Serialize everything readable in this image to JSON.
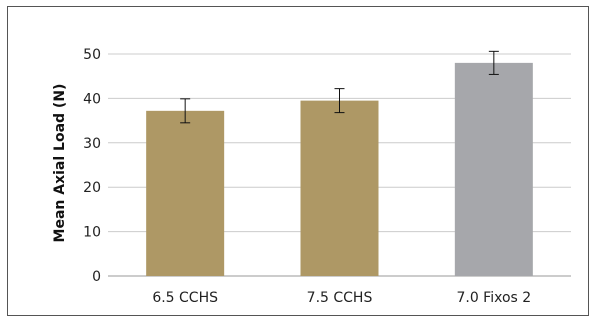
{
  "chart_data": {
    "type": "bar",
    "title": "",
    "xlabel": "",
    "ylabel": "Mean Axial Load (N)",
    "ylim": [
      0,
      50
    ],
    "yticks": [
      0,
      10,
      20,
      30,
      40,
      50
    ],
    "grid": true,
    "categories": [
      "6.5 CCHS",
      "7.5 CCHS",
      "7.0 Fixos 2"
    ],
    "values": [
      37.2,
      39.5,
      48.0
    ],
    "error": [
      2.7,
      2.7,
      2.6
    ],
    "colors": [
      "#ae9865",
      "#ae9865",
      "#a6a7ab"
    ]
  }
}
